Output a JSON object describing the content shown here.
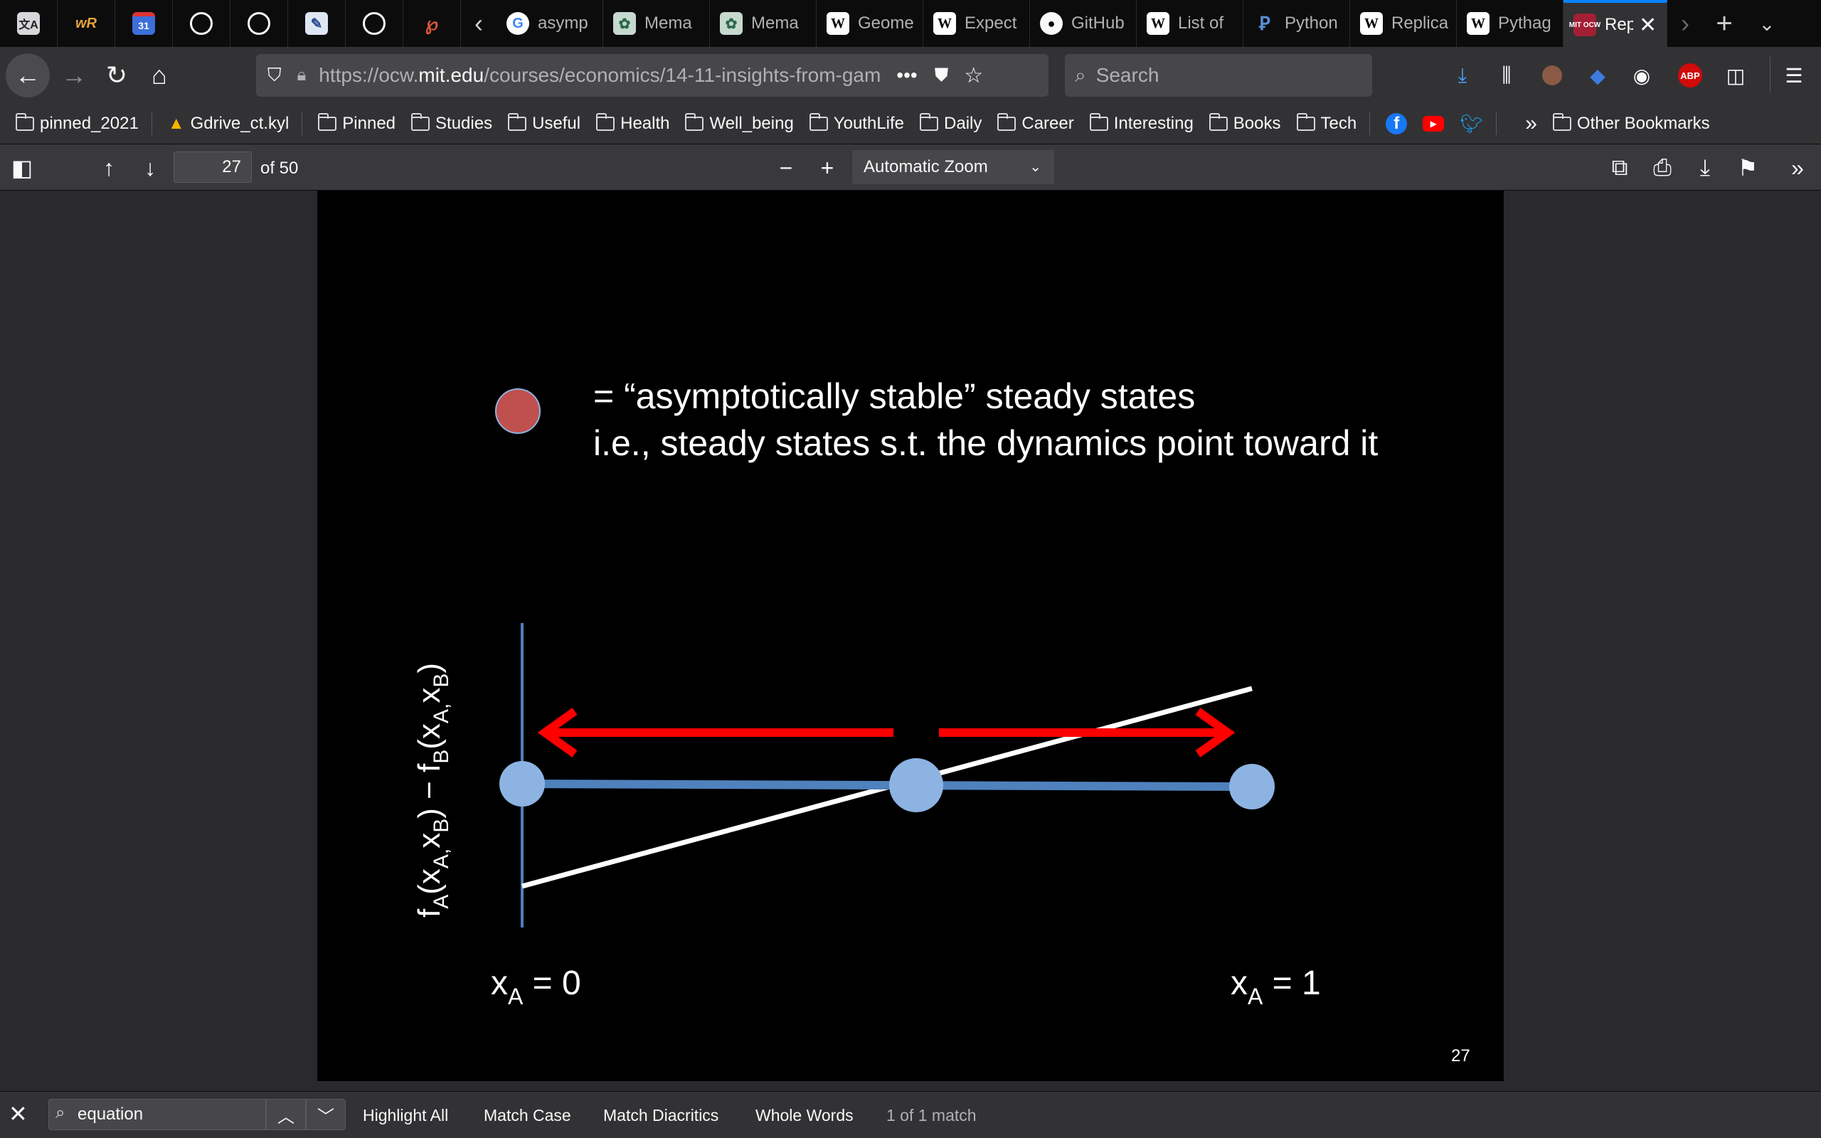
{
  "browser": {
    "tabs": [
      {
        "label": "asymp",
        "icon": "google-icon"
      },
      {
        "label": "Mema",
        "icon": "memrise-icon"
      },
      {
        "label": "Mema",
        "icon": "memrise-icon"
      },
      {
        "label": "Geome",
        "icon": "wikipedia-icon"
      },
      {
        "label": "Expect",
        "icon": "wikipedia-icon"
      },
      {
        "label": "GitHub",
        "icon": "github-icon"
      },
      {
        "label": "List of",
        "icon": "wikipedia-icon"
      },
      {
        "label": "Python",
        "icon": "python-icon"
      },
      {
        "label": "Replica",
        "icon": "wikipedia-icon"
      },
      {
        "label": "Pythag",
        "icon": "wikipedia-icon"
      }
    ],
    "active_tab": {
      "label": "Rep",
      "icon_text": "MIT OCW"
    },
    "url": {
      "prefix": "https://ocw.",
      "domain": "mit.edu",
      "path": "/courses/economics/14-11-insights-from-gam"
    },
    "search_placeholder": "Search",
    "bookmarks": [
      "pinned_2021",
      "Gdrive_ct.kyl",
      "Pinned",
      "Studies",
      "Useful",
      "Health",
      "Well_being",
      "YouthLife",
      "Daily",
      "Career",
      "Interesting",
      "Books",
      "Tech"
    ],
    "other_bookmarks": "Other Bookmarks",
    "abp_label": "ABP"
  },
  "pdf": {
    "page_number": "27",
    "page_of": "of 50",
    "zoom": "Automatic Zoom"
  },
  "slide": {
    "legend_line1": "= “asymptotically stable” steady states",
    "legend_line2": "i.e., steady states s.t. the dynamics point toward it",
    "ylabel": {
      "f": "f",
      "a": "A",
      "x": "(x",
      "ab1": "A,",
      "xb": "x",
      "b1": "B",
      "mid": ") − f",
      "b2": "B",
      "x2": "(x",
      "ab2": "A,",
      "xb2": "x",
      "b3": "B",
      "close": ")"
    },
    "x_left": {
      "x": "x",
      "sub": "A",
      "rest": " = 0"
    },
    "x_right": {
      "x": "x",
      "sub": "A",
      "rest": " = 1"
    },
    "slide_number": "27",
    "colors": {
      "stable": "#c0504d",
      "steady": "#8db3e2",
      "axis": "#4f81bd",
      "arrow": "#ff0000"
    }
  },
  "findbar": {
    "query": "equation",
    "highlight_all": "Highlight All",
    "match_case": "Match Case",
    "match_diacritics": "Match Diacritics",
    "whole_words": "Whole Words",
    "status": "1 of 1 match"
  }
}
